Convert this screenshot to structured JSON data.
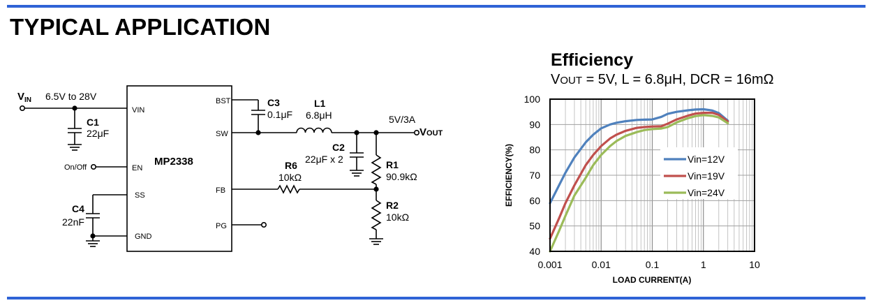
{
  "heading": "TYPICAL APPLICATION",
  "circuit": {
    "ic_name": "MP2338",
    "pins_left": {
      "vin": "VIN",
      "en": "EN",
      "ss": "SS",
      "gnd": "GND"
    },
    "pins_right": {
      "bst": "BST",
      "sw": "SW",
      "fb": "FB",
      "pg": "PG"
    },
    "vin_label": "V",
    "vin_sub": "IN",
    "vin_range": "6.5V to 28V",
    "onoff": "On/Off",
    "c1": {
      "ref": "C1",
      "value": "22μF"
    },
    "c3": {
      "ref": "C3",
      "value": "0.1μF"
    },
    "c4": {
      "ref": "C4",
      "value": "22nF"
    },
    "l1": {
      "ref": "L1",
      "value": "6.8μH"
    },
    "c2": {
      "ref": "C2",
      "value": "22μF x 2"
    },
    "r6": {
      "ref": "R6",
      "value": "10kΩ"
    },
    "r1": {
      "ref": "R1",
      "value": "90.9kΩ"
    },
    "r2": {
      "ref": "R2",
      "value": "10kΩ"
    },
    "vout_label": "V",
    "vout_sub": "OUT",
    "vout_value": "5V/3A"
  },
  "chart_data": {
    "type": "line",
    "title": "Efficiency",
    "subtitle_v": "V",
    "subtitle_sub": "OUT",
    "subtitle_rest": " = 5V, L = 6.8μH, DCR = 16mΩ",
    "xlabel": "LOAD CURRENT(A)",
    "ylabel": "EFFICIENCY(%)",
    "x_scale": "log",
    "xlim": [
      0.001,
      10
    ],
    "ylim": [
      40,
      100
    ],
    "x_ticks": [
      "0.001",
      "0.01",
      "0.1",
      "1",
      "10"
    ],
    "y_ticks": [
      "40",
      "50",
      "60",
      "70",
      "80",
      "90",
      "100"
    ],
    "grid": true,
    "legend_position": "center-right",
    "series": [
      {
        "name": "Vin=12V",
        "color": "#4f81bd",
        "x": [
          0.001,
          0.0015,
          0.002,
          0.003,
          0.005,
          0.007,
          0.01,
          0.015,
          0.02,
          0.03,
          0.05,
          0.07,
          0.1,
          0.15,
          0.2,
          0.3,
          0.5,
          0.7,
          1,
          1.5,
          2,
          3
        ],
        "y": [
          59,
          66,
          71,
          77,
          83,
          86,
          88.5,
          90,
          90.7,
          91.3,
          91.8,
          91.9,
          92,
          93,
          94.2,
          95,
          95.6,
          95.9,
          96,
          95.5,
          94.5,
          91.5
        ]
      },
      {
        "name": "Vin=19V",
        "color": "#c0504d",
        "x": [
          0.001,
          0.0015,
          0.002,
          0.003,
          0.005,
          0.007,
          0.01,
          0.015,
          0.02,
          0.03,
          0.05,
          0.07,
          0.1,
          0.15,
          0.2,
          0.3,
          0.5,
          0.7,
          1,
          1.5,
          2,
          3
        ],
        "y": [
          45,
          53,
          59,
          66,
          74,
          78,
          81.5,
          84.5,
          86,
          87.5,
          88.7,
          89,
          89.2,
          89.3,
          90.3,
          92,
          93.5,
          94.3,
          94.6,
          94.6,
          93.8,
          91.2
        ]
      },
      {
        "name": "Vin=24V",
        "color": "#9bbb59",
        "x": [
          0.001,
          0.0015,
          0.002,
          0.003,
          0.005,
          0.007,
          0.01,
          0.015,
          0.02,
          0.03,
          0.05,
          0.07,
          0.1,
          0.15,
          0.2,
          0.3,
          0.5,
          0.7,
          1,
          1.5,
          2,
          3
        ],
        "y": [
          40,
          48,
          54,
          62,
          69,
          74,
          78,
          81.5,
          83.5,
          85.5,
          87,
          87.8,
          88.2,
          88.4,
          89,
          90.8,
          92.5,
          93.3,
          93.7,
          93.4,
          92.8,
          90.5
        ]
      }
    ]
  }
}
